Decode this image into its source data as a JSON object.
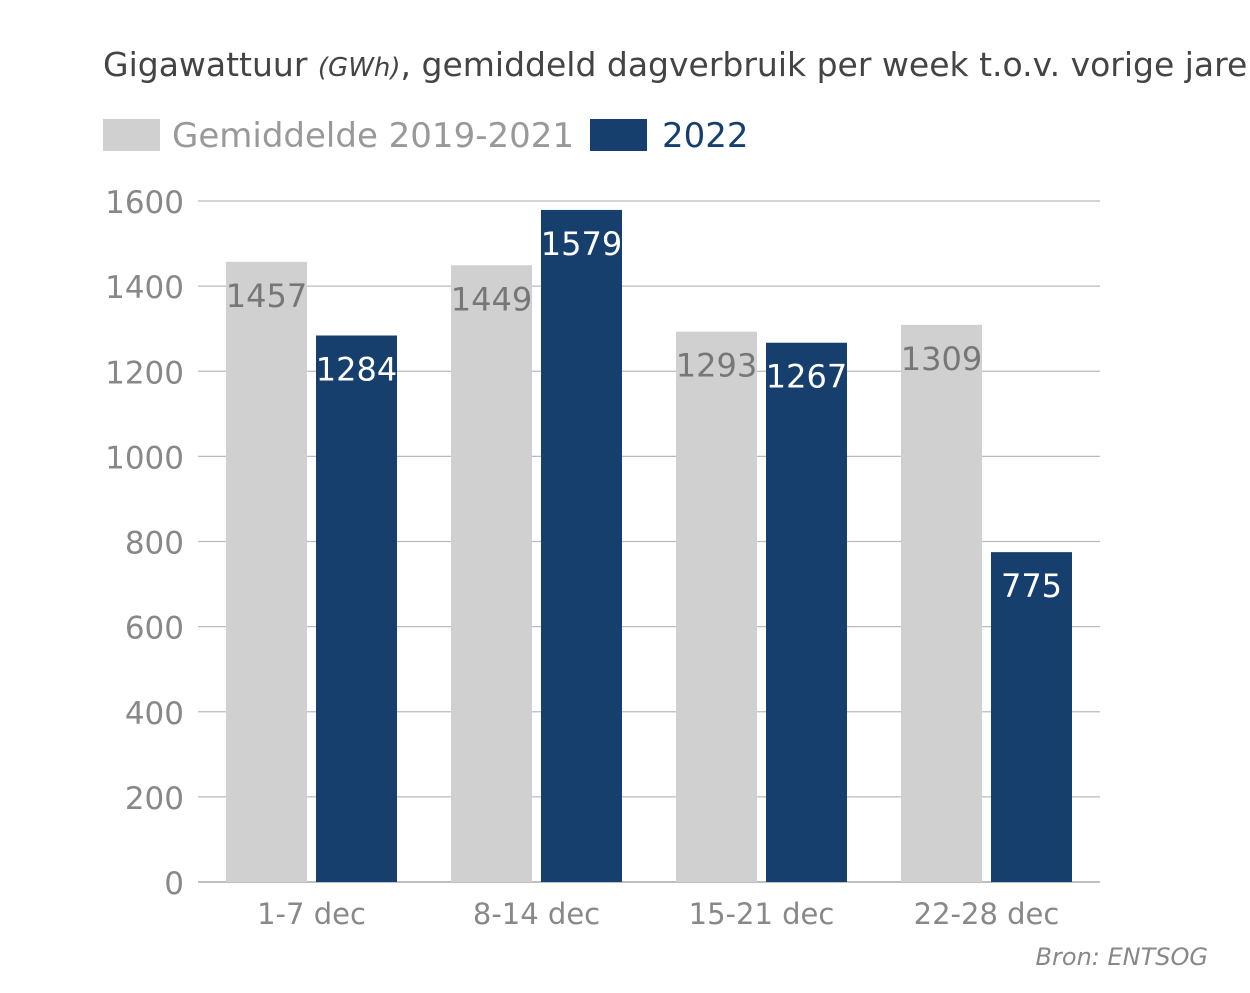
{
  "chart_data": {
    "type": "bar",
    "title": "Gigawattuur",
    "title_unit": "(GWh)",
    "title_rest": ", gemiddeld dagverbruik per week t.o.v. vorige jaren",
    "categories": [
      "1-7 dec",
      "8-14 dec",
      "15-21 dec",
      "22-28 dec"
    ],
    "series": [
      {
        "name": "Gemiddelde 2019-2021",
        "color": "#d0d0d0",
        "label_color": "#777777",
        "values": [
          1457,
          1449,
          1293,
          1309
        ]
      },
      {
        "name": "2022",
        "color": "#173f6e",
        "label_color": "#ffffff",
        "values": [
          1284,
          1579,
          1267,
          775
        ]
      }
    ],
    "yticks": [
      0,
      200,
      400,
      600,
      800,
      1000,
      1200,
      1400,
      1600
    ],
    "ylim": [
      0,
      1600
    ],
    "grid": true,
    "legend": "top-left",
    "source": "Bron: ENTSOG"
  }
}
